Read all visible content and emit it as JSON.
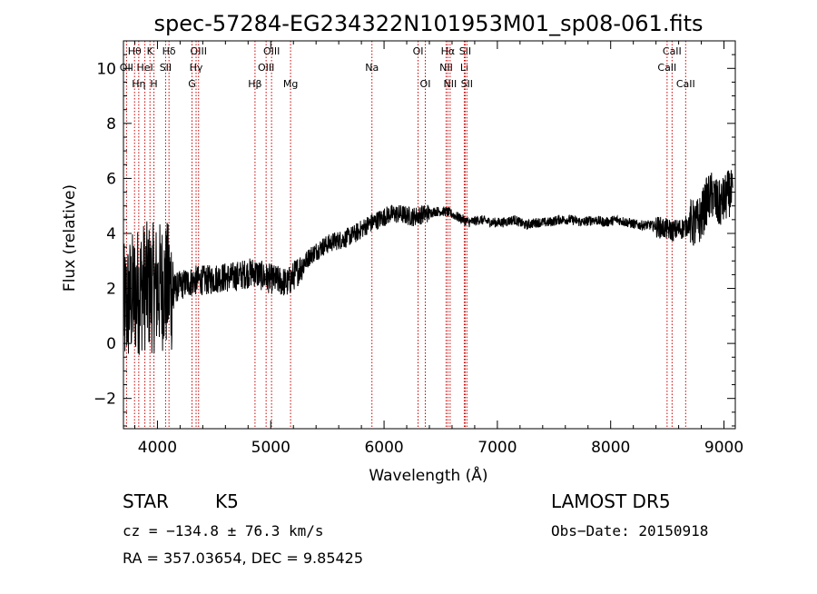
{
  "chart_data": {
    "type": "line",
    "title": "spec-57284-EG234322N101953M01_sp08-061.fits",
    "xlabel": "Wavelength (Å)",
    "ylabel": "Flux (relative)",
    "xlim": [
      3700,
      9100
    ],
    "ylim": [
      -3.1,
      11.0
    ],
    "xticks": [
      4000,
      5000,
      6000,
      7000,
      8000,
      9000
    ],
    "yticks": [
      -2,
      0,
      2,
      4,
      6,
      8,
      10
    ],
    "grid": false,
    "series": [
      {
        "x": [
          3700,
          3760,
          3820,
          3880,
          3950,
          4050,
          4150,
          4250,
          4350,
          4450,
          4550,
          4650,
          4750,
          4850,
          4950,
          5050,
          5150,
          5250,
          5350,
          5450,
          5550,
          5650,
          5750,
          5850,
          5950,
          6050,
          6150,
          6250,
          6350,
          6450,
          6550,
          6650,
          6750,
          6850,
          6950,
          7050,
          7150,
          7250,
          7350,
          7450,
          7550,
          7650,
          7750,
          7850,
          7950,
          8050,
          8150,
          8250,
          8350,
          8450,
          8550,
          8650,
          8700,
          8750,
          8800,
          8850,
          8900,
          8950,
          9000,
          9050,
          9080
        ],
        "y": [
          1.2,
          1.6,
          1.9,
          2.1,
          2.0,
          2.1,
          2.0,
          2.2,
          2.3,
          2.3,
          2.4,
          2.4,
          2.5,
          2.6,
          2.4,
          2.3,
          2.2,
          2.7,
          3.2,
          3.5,
          3.7,
          3.8,
          4.0,
          4.3,
          4.5,
          4.7,
          4.7,
          4.6,
          4.7,
          4.8,
          4.8,
          4.6,
          4.4,
          4.5,
          4.4,
          4.4,
          4.5,
          4.3,
          4.4,
          4.4,
          4.5,
          4.5,
          4.4,
          4.5,
          4.4,
          4.5,
          4.4,
          4.3,
          4.3,
          4.2,
          4.1,
          4.2,
          4.4,
          4.3,
          4.6,
          5.2,
          5.4,
          5.0,
          5.2,
          5.5,
          5.3
        ]
      }
    ],
    "spectral_lines": [
      {
        "name": "Hθ",
        "wave": 3798,
        "row": 1
      },
      {
        "name": "OII",
        "wave": 3727,
        "row": 2
      },
      {
        "name": "HeI",
        "wave": 3889,
        "row": 2
      },
      {
        "name": "OIII",
        "wave": 4363,
        "row": 1
      },
      {
        "name": "Hη",
        "wave": 3835,
        "row": 3
      },
      {
        "name": "K",
        "wave": 3934,
        "row": 1
      },
      {
        "name": "H",
        "wave": 3969,
        "row": 3
      },
      {
        "name": "SII",
        "wave": 4072,
        "row": 2
      },
      {
        "name": "Hδ",
        "wave": 4102,
        "row": 1
      },
      {
        "name": "Hγ",
        "wave": 4341,
        "row": 2
      },
      {
        "name": "G",
        "wave": 4305,
        "row": 3
      },
      {
        "name": "Hβ",
        "wave": 4861,
        "row": 3
      },
      {
        "name": "OIII",
        "wave": 4959,
        "row": 2
      },
      {
        "name": "OIII",
        "wave": 5007,
        "row": 1
      },
      {
        "name": "Mg",
        "wave": 5175,
        "row": 3
      },
      {
        "name": "Na",
        "wave": 5893,
        "row": 2
      },
      {
        "name": "OI",
        "wave": 6300,
        "row": 1
      },
      {
        "name": "OI",
        "wave": 6364,
        "row": 3
      },
      {
        "name": "Hα",
        "wave": 6563,
        "row": 1
      },
      {
        "name": "NII",
        "wave": 6548,
        "row": 2
      },
      {
        "name": "NII",
        "wave": 6583,
        "row": 3
      },
      {
        "name": "SII",
        "wave": 6716,
        "row": 1
      },
      {
        "name": "Li",
        "wave": 6708,
        "row": 2
      },
      {
        "name": "SII",
        "wave": 6731,
        "row": 3
      },
      {
        "name": "CaII",
        "wave": 8542,
        "row": 1
      },
      {
        "name": "CaII",
        "wave": 8498,
        "row": 2
      },
      {
        "name": "CaII",
        "wave": 8662,
        "row": 3
      }
    ]
  },
  "footer": {
    "object_class": "STAR",
    "subclass": "K5",
    "survey": "LAMOST DR5",
    "cz": "cz = −134.8 ± 76.3 km/s",
    "obs_date": "Obs−Date: 20150918",
    "coords": "RA = 357.03654, DEC =   9.85425"
  },
  "colors": {
    "line": "#000000",
    "spectral_line_marker": "#cc0000",
    "background": "#ffffff"
  }
}
